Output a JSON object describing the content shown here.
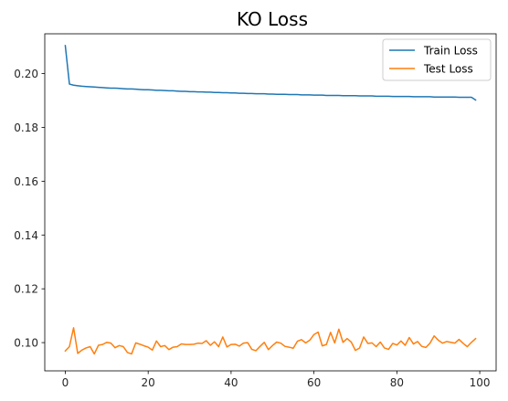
{
  "chart_data": {
    "type": "line",
    "title": "KO Loss",
    "xlabel": "",
    "ylabel": "",
    "xlim": [
      -4.95,
      103.95
    ],
    "ylim": [
      0.0895,
      0.2148
    ],
    "xticks": [
      0,
      20,
      40,
      60,
      80,
      100
    ],
    "xtick_labels": [
      "0",
      "20",
      "40",
      "60",
      "80",
      "100"
    ],
    "yticks": [
      0.1,
      0.12,
      0.14,
      0.16,
      0.18,
      0.2
    ],
    "ytick_labels": [
      "0.10",
      "0.12",
      "0.14",
      "0.16",
      "0.18",
      "0.20"
    ],
    "grid": false,
    "legend_position": "top-right",
    "series": [
      {
        "name": "Train Loss",
        "color": "#1f77b4",
        "x": [
          0,
          1,
          2,
          3,
          4,
          5,
          6,
          7,
          8,
          9,
          10,
          11,
          12,
          13,
          14,
          15,
          16,
          17,
          18,
          19,
          20,
          21,
          22,
          23,
          24,
          25,
          26,
          27,
          28,
          29,
          30,
          31,
          32,
          33,
          34,
          35,
          36,
          37,
          38,
          39,
          40,
          41,
          42,
          43,
          44,
          45,
          46,
          47,
          48,
          49,
          50,
          51,
          52,
          53,
          54,
          55,
          56,
          57,
          58,
          59,
          60,
          61,
          62,
          63,
          64,
          65,
          66,
          67,
          68,
          69,
          70,
          71,
          72,
          73,
          74,
          75,
          76,
          77,
          78,
          79,
          80,
          81,
          82,
          83,
          84,
          85,
          86,
          87,
          88,
          89,
          90,
          91,
          92,
          93,
          94,
          95,
          96,
          97,
          98,
          99
        ],
        "values": [
          0.2104,
          0.1961,
          0.1957,
          0.1955,
          0.1953,
          0.1952,
          0.1951,
          0.195,
          0.1949,
          0.1948,
          0.1947,
          0.1946,
          0.1946,
          0.1945,
          0.1944,
          0.1943,
          0.1943,
          0.1942,
          0.1941,
          0.194,
          0.194,
          0.1939,
          0.1938,
          0.1938,
          0.1937,
          0.1936,
          0.1936,
          0.1935,
          0.1934,
          0.1934,
          0.1933,
          0.1933,
          0.1932,
          0.1932,
          0.1931,
          0.1931,
          0.193,
          0.193,
          0.1929,
          0.1929,
          0.1928,
          0.1928,
          0.1927,
          0.1927,
          0.1926,
          0.1926,
          0.1925,
          0.1925,
          0.1925,
          0.1924,
          0.1924,
          0.1923,
          0.1923,
          0.1923,
          0.1922,
          0.1922,
          0.1922,
          0.1921,
          0.1921,
          0.1921,
          0.192,
          0.192,
          0.192,
          0.1919,
          0.1919,
          0.1919,
          0.1919,
          0.1918,
          0.1918,
          0.1918,
          0.1918,
          0.1917,
          0.1917,
          0.1917,
          0.1917,
          0.1916,
          0.1916,
          0.1916,
          0.1916,
          0.1915,
          0.1915,
          0.1915,
          0.1915,
          0.1915,
          0.1914,
          0.1914,
          0.1914,
          0.1914,
          0.1914,
          0.1913,
          0.1913,
          0.1913,
          0.1913,
          0.1913,
          0.1913,
          0.1912,
          0.1912,
          0.1912,
          0.1912,
          0.1902
        ]
      },
      {
        "name": "Test Loss",
        "color": "#ff7f0e",
        "x": [
          0,
          1,
          2,
          3,
          4,
          5,
          6,
          7,
          8,
          9,
          10,
          11,
          12,
          13,
          14,
          15,
          16,
          17,
          18,
          19,
          20,
          21,
          22,
          23,
          24,
          25,
          26,
          27,
          28,
          29,
          30,
          31,
          32,
          33,
          34,
          35,
          36,
          37,
          38,
          39,
          40,
          41,
          42,
          43,
          44,
          45,
          46,
          47,
          48,
          49,
          50,
          51,
          52,
          53,
          54,
          55,
          56,
          57,
          58,
          59,
          60,
          61,
          62,
          63,
          64,
          65,
          66,
          67,
          68,
          69,
          70,
          71,
          72,
          73,
          74,
          75,
          76,
          77,
          78,
          79,
          80,
          81,
          82,
          83,
          84,
          85,
          86,
          87,
          88,
          89,
          90,
          91,
          92,
          93,
          94,
          95,
          96,
          97,
          98,
          99
        ],
        "values": [
          0.0969,
          0.0985,
          0.1055,
          0.096,
          0.0972,
          0.098,
          0.0985,
          0.0958,
          0.099,
          0.0993,
          0.1001,
          0.0998,
          0.0981,
          0.0989,
          0.0985,
          0.0963,
          0.0958,
          0.0999,
          0.0994,
          0.0988,
          0.0983,
          0.0972,
          0.1006,
          0.0985,
          0.0989,
          0.0974,
          0.0983,
          0.0985,
          0.0995,
          0.0993,
          0.0993,
          0.0994,
          0.0998,
          0.0997,
          0.1007,
          0.099,
          0.1003,
          0.0985,
          0.1021,
          0.0984,
          0.0993,
          0.0994,
          0.0987,
          0.0998,
          0.1,
          0.0975,
          0.097,
          0.0986,
          0.1001,
          0.0974,
          0.0989,
          0.1002,
          0.0998,
          0.0986,
          0.0983,
          0.0979,
          0.1005,
          0.1011,
          0.0999,
          0.1009,
          0.103,
          0.1039,
          0.0988,
          0.0993,
          0.1038,
          0.0999,
          0.105,
          0.1001,
          0.1015,
          0.1002,
          0.0971,
          0.098,
          0.1021,
          0.0997,
          0.0999,
          0.0985,
          0.1002,
          0.098,
          0.0975,
          0.0997,
          0.0991,
          0.1006,
          0.099,
          0.1019,
          0.0995,
          0.1004,
          0.0986,
          0.0982,
          0.0998,
          0.1025,
          0.1009,
          0.0998,
          0.1004,
          0.1001,
          0.0998,
          0.1012,
          0.0997,
          0.0985,
          0.1001,
          0.1015
        ]
      }
    ]
  }
}
